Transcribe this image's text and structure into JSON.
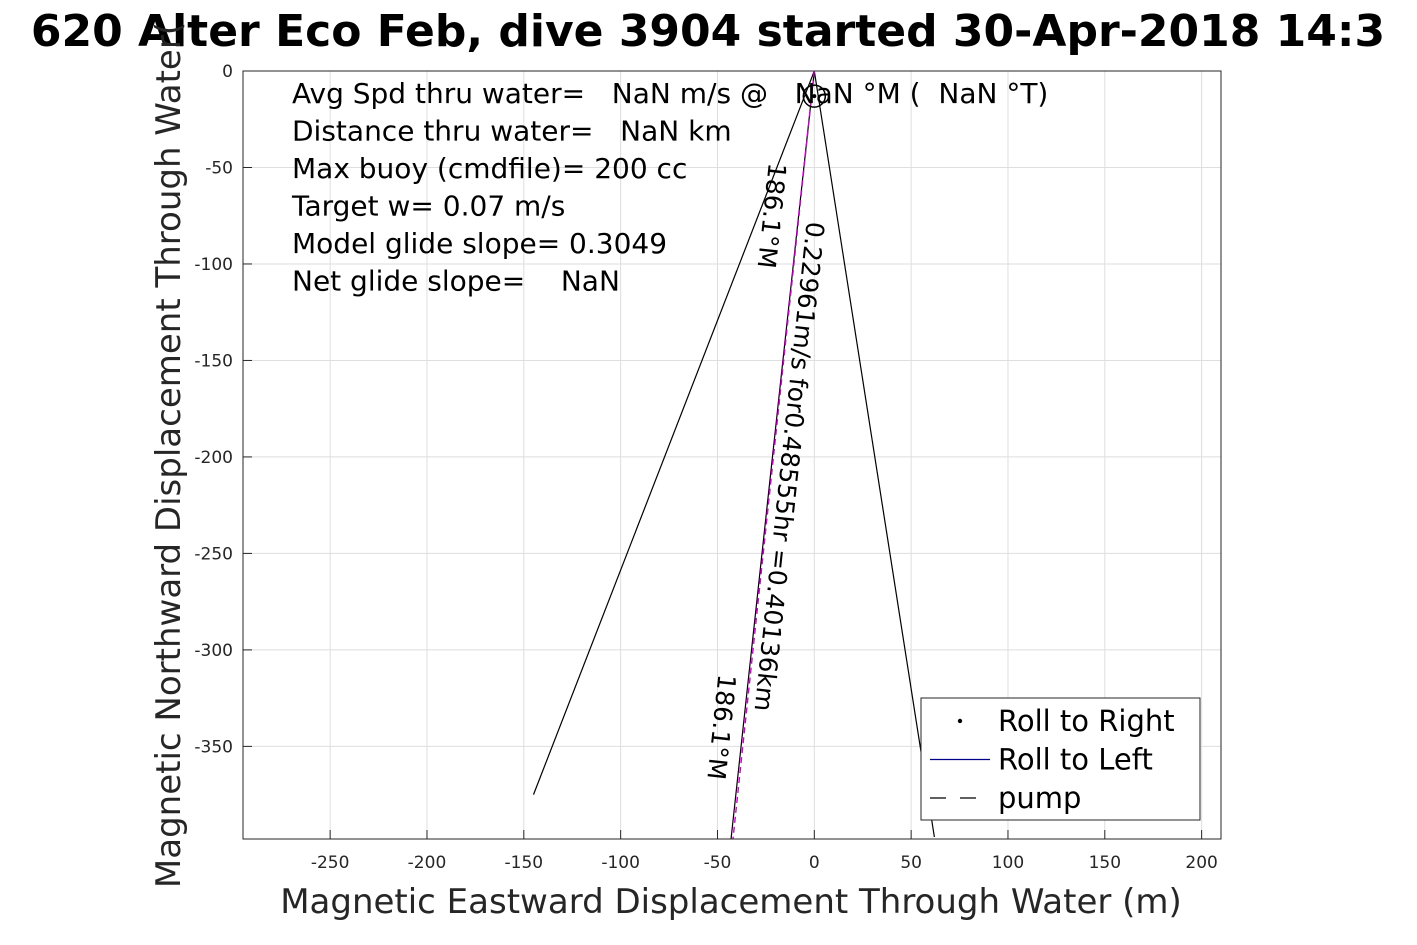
{
  "chart_data": {
    "type": "line",
    "title": "620 Alter Eco Feb, dive 3904 started 30-Apr-2018 14:3",
    "xlabel": "Magnetic Eastward Displacement Through Water (m)",
    "ylabel": "Magnetic Northward Displacement Through Water(",
    "xlim": [
      -295,
      210
    ],
    "ylim": [
      -398,
      0
    ],
    "xticks": [
      -250,
      -200,
      -150,
      -100,
      -50,
      0,
      50,
      100,
      150,
      200
    ],
    "yticks": [
      0,
      -50,
      -100,
      -150,
      -200,
      -250,
      -300,
      -350
    ],
    "grid": true,
    "info_lines": [
      "Avg Spd thru water=   NaN m/s @   NaN °M (  NaN °T)",
      "Distance thru water=   NaN km",
      "Max buoy (cmdfile)= 200 cc",
      "Target w= 0.07 m/s",
      "Model glide slope= 0.3049",
      "Net glide slope=    NaN"
    ],
    "series": [
      {
        "name": "Roll to Right",
        "x": [],
        "y": [],
        "color": "#000000"
      },
      {
        "name": "Roll to Left",
        "x": [],
        "y": [],
        "color": "#00008b"
      },
      {
        "name": "pump",
        "x": [],
        "y": [],
        "color": "#000000"
      }
    ],
    "track_lines": [
      {
        "x": [
          0,
          -145
        ],
        "y": [
          0,
          -375
        ],
        "color": "#000000"
      },
      {
        "x": [
          0,
          62
        ],
        "y": [
          0,
          -397
        ],
        "color": "#000000"
      }
    ],
    "vectors": [
      {
        "x": [
          0,
          -43
        ],
        "y": [
          0,
          -398
        ],
        "color": "#000000",
        "dash": false
      },
      {
        "x": [
          0,
          -42
        ],
        "y": [
          0,
          -398
        ],
        "color": "#cc00cc",
        "dash": true
      }
    ],
    "vector_labels": [
      {
        "text": "0.22961m/s for0.48555hr =0.40136km",
        "x": -13,
        "y": -205,
        "angle": 96.1
      },
      {
        "text": "186.1°M",
        "x": -22,
        "y": -75,
        "angle": 96.1
      },
      {
        "text": "186.1°M",
        "x": -48,
        "y": -340,
        "angle": 96.1
      }
    ],
    "circle_marker": {
      "x": 0,
      "y": -13
    },
    "legend": {
      "position": "bottom-right",
      "entries": [
        "Roll to Right",
        "Roll to Left",
        "pump"
      ]
    }
  }
}
